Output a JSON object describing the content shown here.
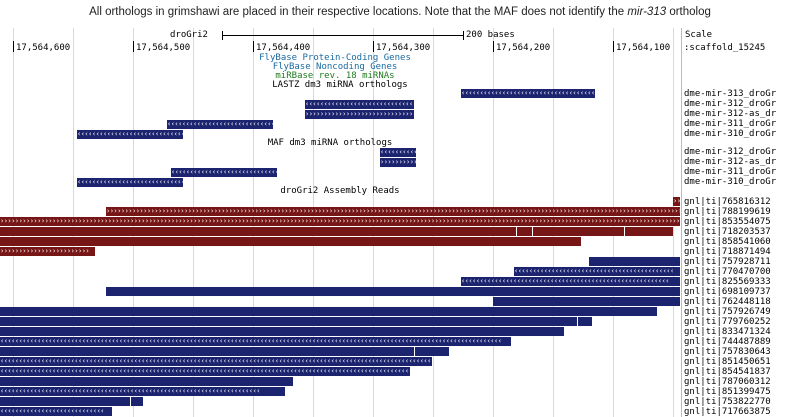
{
  "caption": {
    "prefix": "All orthologs in grimshawi are placed in their respective locations. Note that the MAF does not identify the ",
    "italic": "mir-313",
    "suffix": " ortholog"
  },
  "ruler": {
    "assembly": "droGri2",
    "scale_text": "200 bases",
    "scale_label": "Scale",
    "chrom_label": ":scaffold_15245",
    "positions": [
      "17,564,600",
      "17,564,500",
      "17,564,400",
      "17,564,300",
      "17,564,200",
      "17,564,100"
    ]
  },
  "tracks": {
    "protein_coding": "FlyBase Protein-Coding Genes",
    "noncoding": "FlyBase Noncoding Genes",
    "mirbase": "miRBase rev. 18 miRNAs",
    "lastz": "LASTZ dm3 miRNA orthologs",
    "maf": "MAF dm3 miRNA orthologs",
    "reads": "droGri2 Assembly Reads"
  },
  "track_colors": {
    "protein_coding": "#1a6aa0",
    "noncoding": "#1a6aa0",
    "mirbase": "#1e7a1e",
    "orthologs": "#1c2470",
    "reads_plus": "#761616",
    "reads_minus": "#1c2470"
  },
  "lastz_labels": [
    "dme-mir-313_droGr",
    "dme-mir-312_droGr",
    "dme-mir-312-as_dr",
    "dme-mir-311_droGr",
    "dme-mir-310_droGr"
  ],
  "maf_labels": [
    "dme-mir-312_droGr",
    "dme-mir-312-as_dr",
    "dme-mir-311_droGr",
    "dme-mir-310_droGr"
  ],
  "read_labels": [
    "gnl|ti|765816312",
    "gnl|ti|788199619",
    "gnl|ti|853554075",
    "gnl|ti|718203537",
    "gnl|ti|858541060",
    "gnl|ti|718871494",
    "gnl|ti|757928711",
    "gnl|ti|770470700",
    "gnl|ti|825569333",
    "gnl|ti|698109737",
    "gnl|ti|762448118",
    "gnl|ti|757926749",
    "gnl|ti|779760252",
    "gnl|ti|833471324",
    "gnl|ti|744487889",
    "gnl|ti|757830643",
    "gnl|ti|851450651",
    "gnl|ti|854541837",
    "gnl|ti|787060312",
    "gnl|ti|851399475",
    "gnl|ti|753822770",
    "gnl|ti|717663875"
  ]
}
